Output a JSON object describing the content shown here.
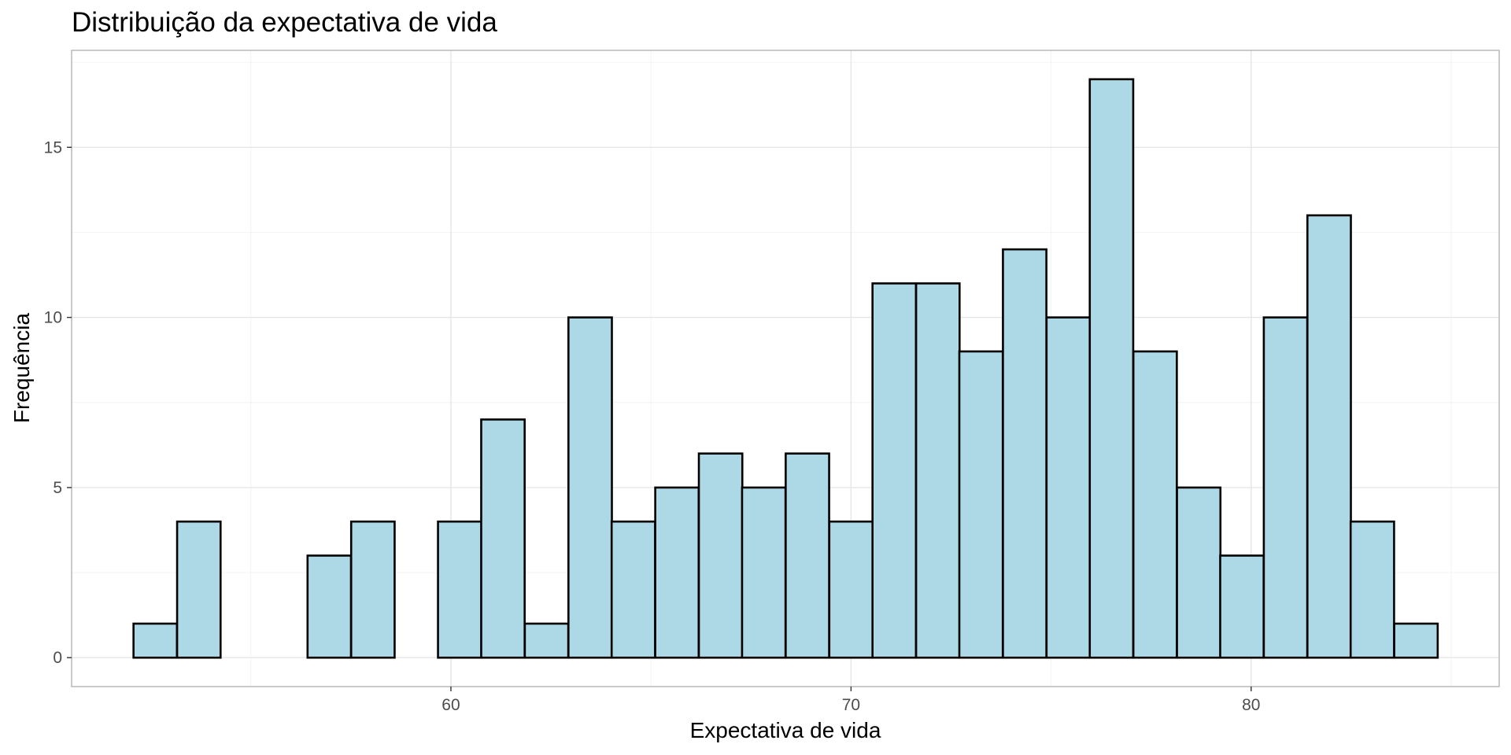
{
  "chart_data": {
    "type": "bar",
    "subtype": "histogram",
    "title": "Distribuição da expectativa de vida",
    "xlabel": "Expectativa de vida",
    "ylabel": "Frequência",
    "bin_width": 1.086,
    "bin_centers": [
      52.61,
      53.7,
      54.79,
      55.87,
      56.96,
      58.05,
      59.13,
      60.22,
      61.3,
      62.39,
      63.48,
      64.56,
      65.65,
      66.74,
      67.82,
      68.91,
      70.0,
      71.08,
      72.17,
      73.25,
      74.34,
      75.43,
      76.51,
      77.6,
      78.69,
      79.77,
      80.86,
      81.95,
      83.03,
      84.12
    ],
    "values": [
      1,
      4,
      0,
      0,
      3,
      4,
      0,
      4,
      7,
      1,
      10,
      4,
      5,
      6,
      5,
      6,
      4,
      11,
      11,
      9,
      12,
      10,
      17,
      9,
      5,
      3,
      10,
      13,
      4,
      1
    ],
    "xlim": [
      50.52,
      86.2
    ],
    "ylim": [
      -0.85,
      17.85
    ],
    "x_ticks": [
      60,
      70,
      80
    ],
    "x_tick_labels": [
      "60",
      "70",
      "80"
    ],
    "y_ticks": [
      0,
      5,
      10,
      15
    ],
    "y_tick_labels": [
      "0",
      "5",
      "10",
      "15"
    ],
    "grid": true,
    "legend": "none",
    "colors": {
      "bar_fill": "#add8e6",
      "bar_outline": "#000000",
      "grid_major": "#e6e6e6",
      "grid_minor": "#f2f2f2",
      "panel_border": "#b3b3b3",
      "tick_text": "#4d4d4d"
    }
  }
}
